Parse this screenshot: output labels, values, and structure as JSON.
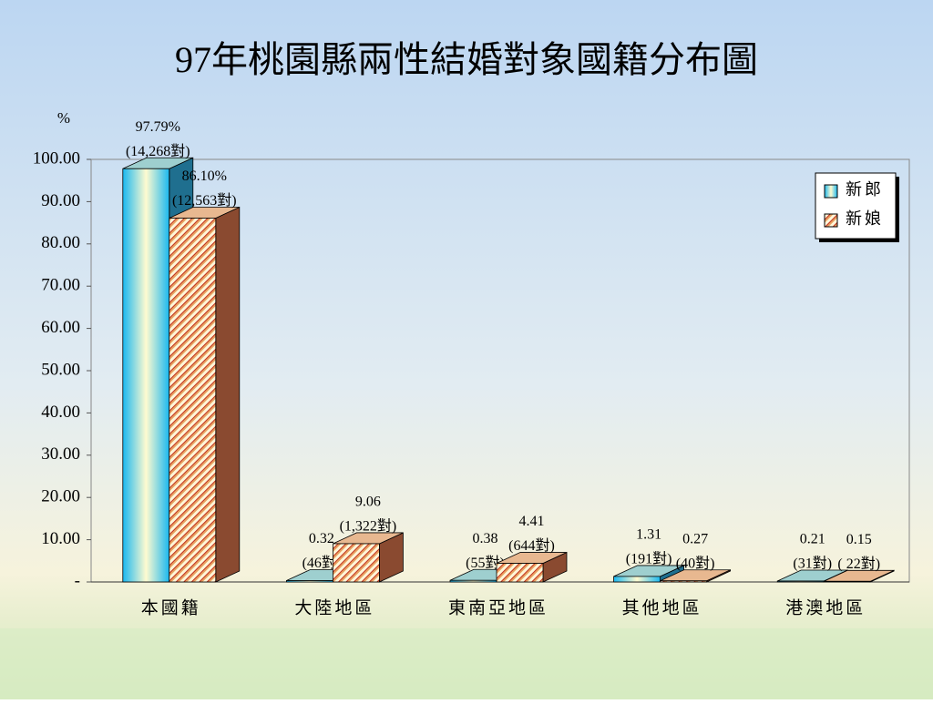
{
  "chart_data": {
    "type": "bar3d",
    "title": "97年桃園縣兩性結婚對象國籍分布圖",
    "y_label": "%",
    "categories": [
      "本國籍",
      "大陸地區",
      "東南亞地區",
      "其他地區",
      "港澳地區"
    ],
    "series": [
      {
        "name": "新郎",
        "color": "#33ccff",
        "values": [
          97.79,
          0.32,
          0.38,
          1.31,
          0.21
        ],
        "value_labels": [
          "97.79%",
          "0.32",
          "0.38",
          "1.31",
          "0.21"
        ],
        "count_labels": [
          "(14,268對)",
          "(46對)",
          "(55對)",
          "(191對)",
          "(31對)"
        ]
      },
      {
        "name": "新娘",
        "color": "#e8a060",
        "values": [
          86.1,
          9.06,
          4.41,
          0.27,
          0.15
        ],
        "value_labels": [
          "86.10%",
          "9.06",
          "4.41",
          "0.27",
          "0.15"
        ],
        "count_labels": [
          "(12,563對)",
          "(1,322對)",
          "(644對)",
          "(40對)",
          "( 22對)"
        ]
      }
    ],
    "ylim": [
      0,
      100
    ],
    "yticks": [
      {
        "value": 0,
        "label": "-"
      },
      {
        "value": 10,
        "label": "10.00"
      },
      {
        "value": 20,
        "label": "20.00"
      },
      {
        "value": 30,
        "label": "30.00"
      },
      {
        "value": 40,
        "label": "40.00"
      },
      {
        "value": 50,
        "label": "50.00"
      },
      {
        "value": 60,
        "label": "60.00"
      },
      {
        "value": 70,
        "label": "70.00"
      },
      {
        "value": 80,
        "label": "80.00"
      },
      {
        "value": 90,
        "label": "90.00"
      },
      {
        "value": 100,
        "label": "100.00"
      }
    ],
    "legend": "top-right"
  }
}
